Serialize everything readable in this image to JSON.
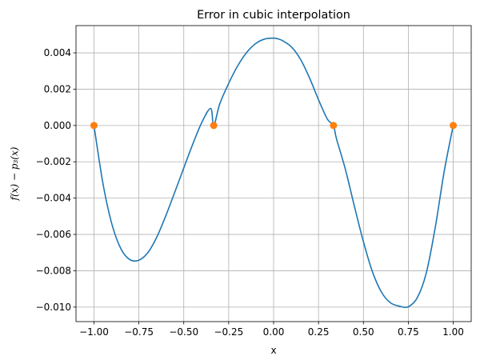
{
  "chart_data": {
    "type": "line",
    "title": "Error in cubic interpolation",
    "xlabel": "x",
    "ylabel": "f(x) − p₃(x)",
    "xlim": [
      -1.1,
      1.1
    ],
    "ylim": [
      -0.0108,
      0.0055
    ],
    "grid": true,
    "x_ticks": [
      -1.0,
      -0.75,
      -0.5,
      -0.25,
      0.0,
      0.25,
      0.5,
      0.75,
      1.0
    ],
    "x_tick_labels": [
      "−1.00",
      "−0.75",
      "−0.50",
      "−0.25",
      "0.00",
      "0.25",
      "0.50",
      "0.75",
      "1.00"
    ],
    "y_ticks": [
      0.004,
      0.002,
      0.0,
      -0.002,
      -0.004,
      -0.006,
      -0.008,
      -0.01
    ],
    "y_tick_labels": [
      "0.004",
      "0.002",
      "0.000",
      "−0.002",
      "−0.004",
      "−0.006",
      "−0.008",
      "−0.010"
    ],
    "series": [
      {
        "type": "line",
        "color": "#1f77b4",
        "x": [
          -1.0,
          -0.95,
          -0.9,
          -0.85,
          -0.8,
          -0.75,
          -0.7,
          -0.65,
          -0.6,
          -0.55,
          -0.5,
          -0.45,
          -0.4,
          -0.35,
          -0.3333,
          -0.3,
          -0.25,
          -0.2,
          -0.15,
          -0.1,
          -0.05,
          0.0,
          0.02,
          0.05,
          0.1,
          0.15,
          0.2,
          0.25,
          0.3,
          0.3333,
          0.35,
          0.4,
          0.45,
          0.5,
          0.55,
          0.6,
          0.65,
          0.7,
          0.75,
          0.8,
          0.85,
          0.9,
          0.95,
          1.0
        ],
        "y": [
          0.0,
          -0.00319,
          -0.00544,
          -0.00679,
          -0.00739,
          -0.00742,
          -0.007,
          -0.00614,
          -0.00497,
          -0.00367,
          -0.00234,
          -0.00103,
          0.00016,
          0.00094,
          0.0,
          0.00118,
          0.00232,
          0.00328,
          0.00402,
          0.00451,
          0.00476,
          0.00481,
          0.00478,
          0.00467,
          0.00432,
          0.00364,
          0.00262,
          0.00142,
          0.00034,
          0.0,
          -0.00073,
          -0.00243,
          -0.00446,
          -0.0064,
          -0.00805,
          -0.00917,
          -0.00976,
          -0.00995,
          -0.00998,
          -0.00948,
          -0.00812,
          -0.00561,
          -0.00251,
          0.0
        ]
      },
      {
        "type": "scatter",
        "color": "#ff7f0e",
        "x": [
          -1.0,
          -0.3333,
          0.3333,
          1.0
        ],
        "y": [
          0.0,
          0.0,
          0.0,
          0.0
        ]
      }
    ]
  }
}
